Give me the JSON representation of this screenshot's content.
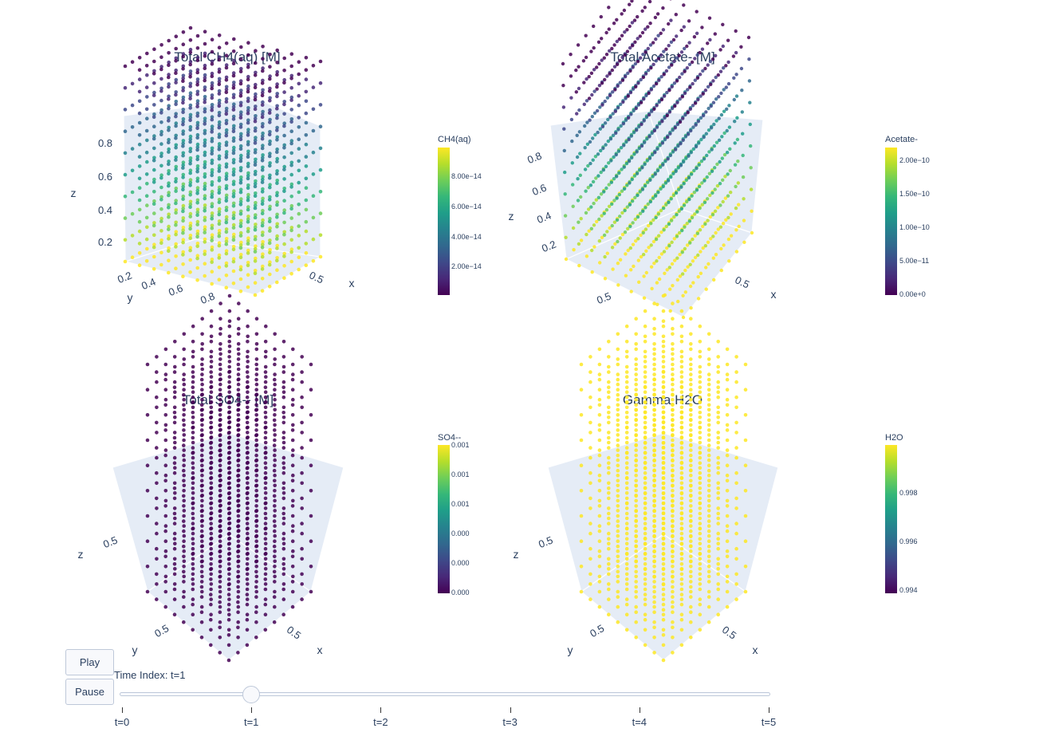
{
  "chart_data": [
    {
      "type": "scatter3d",
      "title": "Total CH4(aq) [M]",
      "axes": {
        "x": "x",
        "y": "y",
        "z": "z"
      },
      "ticks": {
        "z": [
          "0.2",
          "0.4",
          "0.6",
          "0.8"
        ],
        "y": [
          "0.2",
          "0.4",
          "0.6",
          "0.8"
        ],
        "x": [
          "0.5"
        ]
      },
      "colorbar": {
        "title": "CH4(aq)",
        "ticks": [
          "8.00e−14",
          "6.00e−14",
          "4.00e−14",
          "2.00e−14"
        ],
        "range": [
          0,
          9.5e-14
        ]
      },
      "colorscale": "viridis",
      "trend": "value increases as z decreases (high near bottom, low near top)"
    },
    {
      "type": "scatter3d",
      "title": "Total Acetate- [M]",
      "axes": {
        "x": "x",
        "y": "y",
        "z": "z"
      },
      "ticks": {
        "z": [
          "0.2",
          "0.4",
          "0.6",
          "0.8"
        ],
        "y": [
          "0.5"
        ],
        "x": [
          "0.5"
        ]
      },
      "colorbar": {
        "title": "Acetate-",
        "ticks": [
          "2.00e−10",
          "1.50e−10",
          "1.00e−10",
          "5.00e−11",
          "0.00e+0"
        ],
        "range": [
          0,
          2.2e-10
        ]
      },
      "colorscale": "viridis",
      "trend": "value increases as z decreases"
    },
    {
      "type": "scatter3d",
      "title": "Total SO4-- [M]",
      "axes": {
        "x": "x",
        "y": "y",
        "z": "z"
      },
      "ticks": {
        "z": [
          "0.5"
        ],
        "y": [
          "0.5"
        ],
        "x": [
          "0.5"
        ]
      },
      "colorbar": {
        "title": "SO4--",
        "ticks": [
          "0.001",
          "0.001",
          "0.001",
          "0.000",
          "0.000",
          "0.000"
        ],
        "range": [
          0,
          0.001
        ]
      },
      "colorscale": "viridis",
      "trend": "all points at minimum value"
    },
    {
      "type": "scatter3d",
      "title": "Gamma H2O",
      "axes": {
        "x": "x",
        "y": "y",
        "z": "z"
      },
      "ticks": {
        "z": [
          "0.5"
        ],
        "y": [
          "0.5"
        ],
        "x": [
          "0.5"
        ]
      },
      "colorbar": {
        "title": "H2O",
        "ticks": [
          "0.998",
          "0.996",
          "0.994"
        ],
        "range": [
          0.9938,
          0.9999
        ]
      },
      "colorscale": "viridis",
      "trend": "all points at maximum value"
    }
  ],
  "controls": {
    "play_label": "Play",
    "pause_label": "Pause",
    "slider_prefix": "Time Index: t=1",
    "steps": [
      "t=0",
      "t=1",
      "t=2",
      "t=3",
      "t=4",
      "t=5"
    ],
    "active_step": 1
  },
  "colors": {
    "viridis": [
      "#440154",
      "#482878",
      "#3e4989",
      "#31688e",
      "#26828e",
      "#1f9e89",
      "#35b779",
      "#6ece58",
      "#b5de2b",
      "#fde725"
    ],
    "scene_background": "#e5ecf6",
    "text": "#2a3f5f"
  }
}
